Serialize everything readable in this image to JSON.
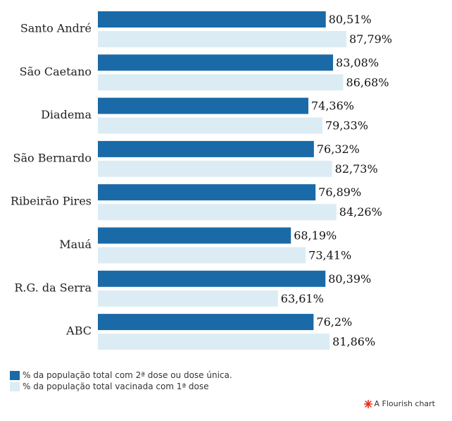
{
  "chart_data": {
    "type": "bar",
    "orientation": "horizontal",
    "categories": [
      "Santo André",
      "São Caetano",
      "Diadema",
      "São Bernardo",
      "Ribeirão Pires",
      "Mauá",
      "R.G. da Serra",
      "ABC"
    ],
    "series": [
      {
        "name": "% da população total com 2ª dose ou dose única.",
        "color": "#1a6aa8",
        "values": [
          80.51,
          83.08,
          74.36,
          76.32,
          76.89,
          68.19,
          80.39,
          76.2
        ],
        "labels": [
          "80,51%",
          "83,08%",
          "74,36%",
          "76,32%",
          "76,89%",
          "68,19%",
          "80,39%",
          "76,2%"
        ]
      },
      {
        "name": "% da população total vacinada com 1ª dose",
        "color": "#dcecf4",
        "values": [
          87.79,
          86.68,
          79.33,
          82.73,
          84.26,
          73.41,
          63.61,
          81.86
        ],
        "labels": [
          "87,79%",
          "86,68%",
          "79,33%",
          "82,73%",
          "84,26%",
          "73,41%",
          "63,61%",
          "81,86%"
        ]
      }
    ],
    "title": "",
    "xlabel": "",
    "ylabel": "",
    "xlim": [
      0,
      100
    ],
    "grid": false,
    "legend": "bottom-left"
  },
  "attribution": {
    "text": "A Flourish chart",
    "icon": "flourish-logo-icon",
    "color": "#e0321e"
  }
}
